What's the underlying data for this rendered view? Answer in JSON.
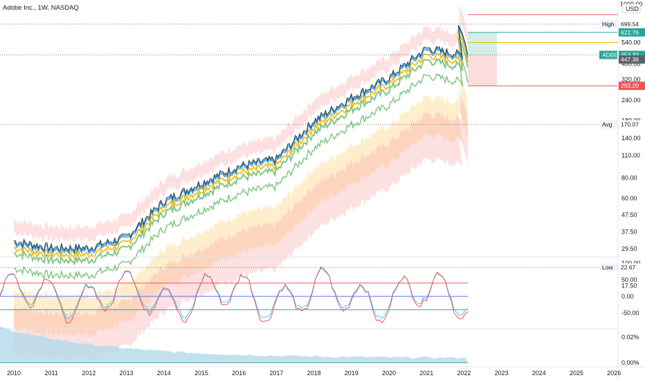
{
  "header": {
    "title": "Adobe Inc., 1W, NASDAQ",
    "currency": "USD",
    "scale_top_label": "1000.00"
  },
  "price_axis": {
    "ticks": [
      540,
      400,
      320,
      240,
      180,
      140,
      110,
      80,
      60,
      47.5,
      37.5,
      29.5,
      22.67,
      17.5
    ],
    "tick_labels": [
      "540.00",
      "400.00",
      "320.00",
      "240.00",
      "180.00",
      "140.00",
      "110.00",
      "80.00",
      "60.00",
      "47.50",
      "37.50",
      "29.50",
      "",
      "17.50"
    ]
  },
  "time_axis": {
    "labels": [
      "2010",
      "2011",
      "2012",
      "2013",
      "2014",
      "2015",
      "2016",
      "2017",
      "2018",
      "2019",
      "2020",
      "2021",
      "2022",
      "2023",
      "2024",
      "2025",
      "2026"
    ]
  },
  "markers": {
    "high": {
      "label": "High",
      "value": "699.54"
    },
    "avg": {
      "label": "Avg",
      "value": "170.07"
    },
    "low": {
      "label": "Low",
      "value": "22.67"
    },
    "symbol": {
      "label": "ADBE",
      "value": "453.33"
    },
    "target": {
      "value": "622.76"
    },
    "stop": {
      "value": "293.20"
    },
    "current2": {
      "value": "447.36"
    }
  },
  "oscillator": {
    "tick_labels": [
      "100.00",
      "50.00",
      "0.00",
      "-50.00"
    ],
    "upper": 40,
    "middle": 0,
    "lower": -40
  },
  "volume_pane": {
    "tick_labels": [
      "0.02%",
      "0.00%"
    ]
  },
  "colors": {
    "candle_up": "#26a69a",
    "candle_down": "#ef5350",
    "ema_fast": "#2196f3",
    "ema_mid": "#4aa3c8",
    "sma_yellow": "#f5b800",
    "sma_green": "#81c784",
    "band_red": "#f8a5a5",
    "band_yellow": "#ffe0a3",
    "target_zone": "#26a69a",
    "stop_zone": "#ef5350"
  },
  "chart_data": {
    "type": "line",
    "title": "Adobe Inc., 1W, NASDAQ",
    "scale": "log",
    "ylim": [
      17.5,
      1000
    ],
    "x": [
      "2010",
      "2011",
      "2012",
      "2013",
      "2014",
      "2015",
      "2016",
      "2017",
      "2018",
      "2019",
      "2020",
      "2021",
      "2022"
    ],
    "series": [
      {
        "name": "ADBE",
        "values": [
          33,
          30,
          30,
          35,
          58,
          75,
          95,
          105,
          180,
          250,
          330,
          500,
          453.33
        ]
      }
    ],
    "annotations": {
      "high": 699.54,
      "low": 22.67,
      "avg": 170.07,
      "target": 622.76,
      "stop": 293.2,
      "last": 453.33
    }
  }
}
